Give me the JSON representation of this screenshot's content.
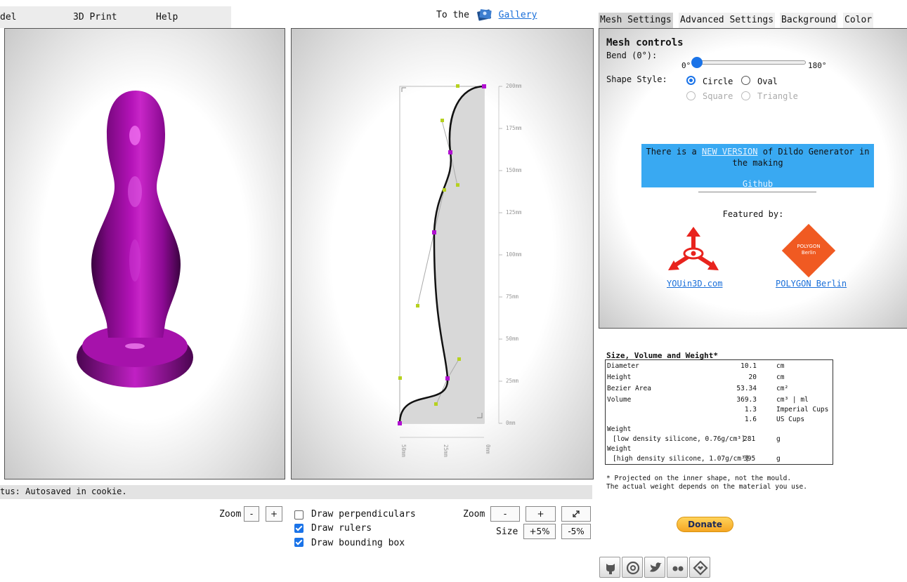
{
  "menu": {
    "items": [
      "del",
      "3D Print",
      "Help"
    ],
    "gallery_prefix": "To the",
    "gallery_link": "Gallery"
  },
  "editor": {
    "ruler_right": [
      "200mm",
      "175mm",
      "150mm",
      "125mm",
      "100mm",
      "75mm",
      "50mm",
      "25mm",
      "0mm"
    ],
    "ruler_bottom": [
      "50mm",
      "25mm",
      "0mm"
    ]
  },
  "status": {
    "text": "tus: Autosaved in cookie."
  },
  "controls": {
    "zoom_label_left": "Zoom",
    "zoom_minus": "-",
    "zoom_plus": "+",
    "draw_perpendiculars": "Draw perpendiculars",
    "draw_rulers": "Draw rulers",
    "draw_bounding_box": "Draw bounding box",
    "zoom_label_right": "Zoom",
    "zoom_minus2": "-",
    "zoom_plus2": "+",
    "size_label": "Size",
    "size_plus": "+5%",
    "size_minus": "-5%",
    "checks": {
      "perpendiculars": false,
      "rulers": true,
      "bounding_box": true
    }
  },
  "tabs": [
    "Mesh Settings",
    "Advanced Settings",
    "Background",
    "Color"
  ],
  "mesh": {
    "heading": "Mesh controls",
    "bend_label": "Bend (0°):",
    "bend_min": "0°",
    "bend_max": "180°",
    "bend_value_fraction": 0,
    "shape_label": "Shape Style:",
    "options": [
      "Circle",
      "Oval",
      "Square",
      "Triangle"
    ],
    "selected": "Circle",
    "banner_prefix": "There is a",
    "banner_link": "NEW VERSION",
    "banner_suffix": "of Dildo Generator in the making",
    "banner_github": "Github",
    "featured_by": "Featured by:",
    "featured": [
      "YOUin3D.com",
      "POLYGON Berlin"
    ],
    "polygon_logo_text": [
      "POLYGON",
      "Berlin"
    ]
  },
  "size_table": {
    "title": "Size, Volume and Weight*",
    "rows": [
      {
        "label": "Diameter",
        "value": "10.1",
        "unit": "cm"
      },
      {
        "label": "Height",
        "value": "20",
        "unit": "cm"
      },
      {
        "label": "Bezier Area",
        "value": "53.34",
        "unit": "cm²"
      },
      {
        "label": "Volume",
        "value": "369.3",
        "unit": "cm³ | ml"
      },
      {
        "label": "",
        "value": "1.3",
        "unit": "Imperial Cups"
      },
      {
        "label": "",
        "value": "1.6",
        "unit": "US Cups"
      }
    ],
    "weight_label": "Weight",
    "weight_low_desc": "[low density silicone, 0.76g/cm³]",
    "weight_low_value": "281",
    "weight_high_desc": "[high density silicone, 1.07g/cm³]",
    "weight_high_value": "395",
    "weight_unit": "g",
    "note_1": "* Projected on the inner shape, not the mould.",
    "note_2": "The actual weight depends on the material you use."
  },
  "donate": {
    "label": "Donate"
  },
  "social": [
    "github-icon",
    "email-icon",
    "twitter-icon",
    "flickr-icon",
    "thingiverse-icon"
  ],
  "colors": {
    "model": "#a011a6",
    "accent": "#1a73e8",
    "banner": "#39a9f2",
    "ctrl_magenta": "#b010d0",
    "ctrl_green": "#b6d11f"
  }
}
